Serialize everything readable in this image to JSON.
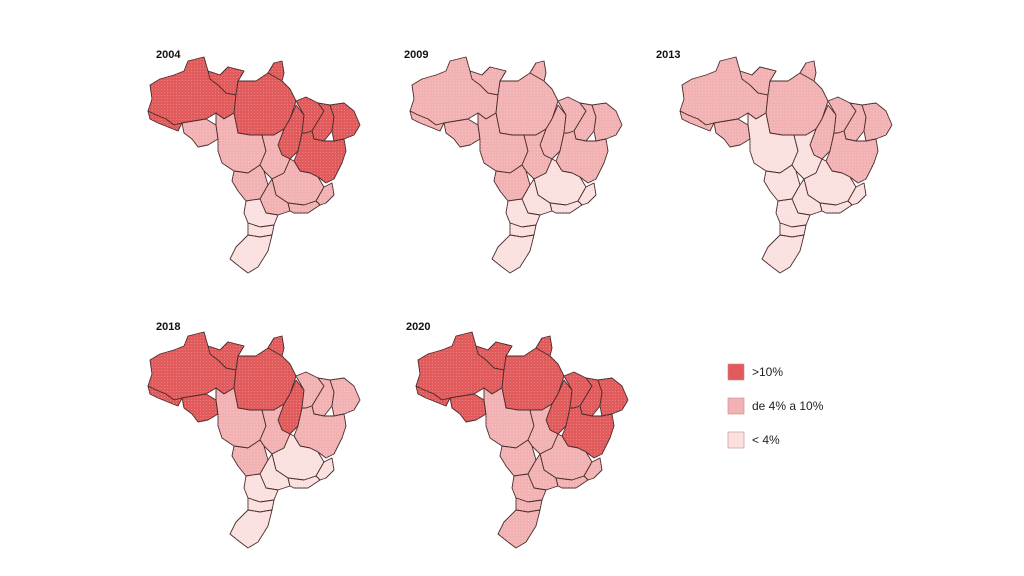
{
  "colors": {
    "high": "#e15a5c",
    "mid": "#f2b2b3",
    "low": "#fbe0e0",
    "border": "#4a2a2a"
  },
  "legend": [
    {
      "key": "high",
      "label": ">10%"
    },
    {
      "key": "mid",
      "label": "de 4% a 10%"
    },
    {
      "key": "low",
      "label": "< 4%"
    }
  ],
  "maps": [
    {
      "year": "2004",
      "fills": {
        "AM": "high",
        "AC": "high",
        "RR": "high",
        "PA": "high",
        "AP": "high",
        "RO": "mid",
        "MT": "mid",
        "TO": "high",
        "MA": "high",
        "PI": "high",
        "NE": "high",
        "BA": "high",
        "GO": "mid",
        "MS": "mid",
        "MG": "mid",
        "SP": "mid",
        "RJ": "mid",
        "ES": "mid",
        "PR": "low",
        "SC": "low",
        "RS": "low"
      }
    },
    {
      "year": "2009",
      "fills": {
        "AM": "mid",
        "AC": "mid",
        "RR": "mid",
        "PA": "mid",
        "AP": "mid",
        "RO": "mid",
        "MT": "mid",
        "TO": "mid",
        "MA": "mid",
        "PI": "mid",
        "NE": "mid",
        "BA": "mid",
        "GO": "mid",
        "MS": "mid",
        "MG": "low",
        "SP": "low",
        "RJ": "low",
        "ES": "low",
        "PR": "low",
        "SC": "low",
        "RS": "low"
      }
    },
    {
      "year": "2013",
      "fills": {
        "AM": "mid",
        "AC": "mid",
        "RR": "mid",
        "PA": "mid",
        "AP": "mid",
        "RO": "mid",
        "MT": "low",
        "TO": "mid",
        "MA": "mid",
        "PI": "mid",
        "NE": "mid",
        "BA": "mid",
        "GO": "low",
        "MS": "low",
        "MG": "low",
        "SP": "low",
        "RJ": "low",
        "ES": "low",
        "PR": "low",
        "SC": "low",
        "RS": "low"
      }
    },
    {
      "year": "2018",
      "fills": {
        "AM": "high",
        "AC": "high",
        "RR": "high",
        "PA": "high",
        "AP": "high",
        "RO": "high",
        "MT": "mid",
        "TO": "high",
        "MA": "mid",
        "PI": "mid",
        "NE": "mid",
        "BA": "mid",
        "GO": "mid",
        "MS": "mid",
        "MG": "low",
        "SP": "low",
        "RJ": "low",
        "ES": "low",
        "PR": "low",
        "SC": "low",
        "RS": "low"
      }
    },
    {
      "year": "2020",
      "fills": {
        "AM": "high",
        "AC": "high",
        "RR": "high",
        "PA": "high",
        "AP": "high",
        "RO": "high",
        "MT": "mid",
        "TO": "high",
        "MA": "high",
        "PI": "high",
        "NE": "high",
        "BA": "high",
        "GO": "mid",
        "MS": "mid",
        "MG": "mid",
        "SP": "mid",
        "RJ": "mid",
        "ES": "mid",
        "PR": "mid",
        "SC": "mid",
        "RS": "mid"
      }
    }
  ]
}
